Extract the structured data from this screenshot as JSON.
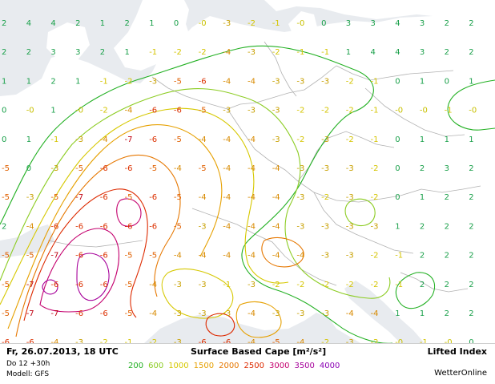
{
  "footer": {
    "date_line": "Fr, 26.07.2013, 18 UTC",
    "run_line": "Do 12 +30h",
    "model_line": "Modell: GFS",
    "product_title": "Surface Based Cape [m²/s²]",
    "product_label": "Lifted Index",
    "brand": "WetterOnline"
  },
  "legend": [
    {
      "value": "200",
      "color": "#22b022"
    },
    {
      "value": "600",
      "color": "#8ccc22"
    },
    {
      "value": "1000",
      "color": "#d6c800"
    },
    {
      "value": "1500",
      "color": "#e6a000"
    },
    {
      "value": "2000",
      "color": "#e67700"
    },
    {
      "value": "2500",
      "color": "#dd2a00"
    },
    {
      "value": "3000",
      "color": "#c4006e"
    },
    {
      "value": "3500",
      "color": "#a6009a"
    },
    {
      "value": "4000",
      "color": "#8a00b4"
    }
  ],
  "colors": {
    "ocean": "#e8ebef",
    "land": "#ffffff",
    "border": "#b2b2b2"
  },
  "lifted_index_grid": [
    [
      "2",
      "4",
      "4",
      "2",
      "1",
      "2",
      "1",
      "0",
      "-0",
      "-3",
      "-2",
      "-1",
      "-0",
      "0",
      "3",
      "3",
      "4",
      "3",
      "2",
      "2"
    ],
    [
      "2",
      "2",
      "3",
      "3",
      "2",
      "1",
      "-1",
      "-2",
      "-2",
      "-4",
      "-3",
      "-2",
      "-1",
      "-1",
      "1",
      "4",
      "4",
      "3",
      "2",
      "2"
    ],
    [
      "1",
      "1",
      "2",
      "1",
      "-1",
      "-2",
      "-3",
      "-5",
      "-6",
      "-4",
      "-4",
      "-3",
      "-3",
      "-3",
      "-2",
      "-1",
      "0",
      "1",
      "0",
      "1"
    ],
    [
      "0",
      "-0",
      "1",
      "-0",
      "-2",
      "-4",
      "-6",
      "-6",
      "-5",
      "-3",
      "-3",
      "-3",
      "-2",
      "-2",
      "-2",
      "-1",
      "-0",
      "-0",
      "-1",
      "-0"
    ],
    [
      "0",
      "1",
      "-1",
      "-3",
      "-4",
      "-7",
      "-6",
      "-5",
      "-4",
      "-4",
      "-4",
      "-3",
      "-2",
      "-3",
      "-2",
      "-1",
      "0",
      "1",
      "1",
      "1"
    ],
    [
      "-5",
      "0",
      "-3",
      "-5",
      "-6",
      "-6",
      "-5",
      "-4",
      "-5",
      "-4",
      "-4",
      "-4",
      "-3",
      "-3",
      "-3",
      "-2",
      "0",
      "2",
      "3",
      "2"
    ],
    [
      "-5",
      "-3",
      "-5",
      "-7",
      "-6",
      "-5",
      "-6",
      "-5",
      "-4",
      "-4",
      "-4",
      "-4",
      "-3",
      "-2",
      "-3",
      "-2",
      "0",
      "1",
      "2",
      "2"
    ],
    [
      "2",
      "-4",
      "-6",
      "-6",
      "-6",
      "-6",
      "-6",
      "-5",
      "-3",
      "-4",
      "-4",
      "-4",
      "-3",
      "-3",
      "-3",
      "-3",
      "1",
      "2",
      "2",
      "2"
    ],
    [
      "-5",
      "-5",
      "-7",
      "-6",
      "-6",
      "-5",
      "-5",
      "-4",
      "-4",
      "-4",
      "-4",
      "-4",
      "-4",
      "-3",
      "-3",
      "-2",
      "-1",
      "2",
      "2",
      "2"
    ],
    [
      "-5",
      "-7",
      "-6",
      "-6",
      "-6",
      "-5",
      "-4",
      "-3",
      "-3",
      "-1",
      "-3",
      "-2",
      "-2",
      "-2",
      "-2",
      "-2",
      "-1",
      "2",
      "2",
      "2"
    ],
    [
      "-5",
      "-7",
      "-7",
      "-6",
      "-6",
      "-5",
      "-4",
      "-3",
      "-3",
      "-3",
      "-4",
      "-3",
      "-3",
      "-3",
      "-4",
      "-4",
      "1",
      "1",
      "2",
      "2"
    ],
    [
      "-6",
      "-6",
      "-4",
      "-3",
      "-2",
      "-1",
      "-2",
      "-3",
      "-6",
      "-6",
      "-4",
      "-5",
      "-4",
      "-2",
      "-3",
      "-2",
      "-0",
      "-1",
      "-0",
      "0"
    ]
  ]
}
